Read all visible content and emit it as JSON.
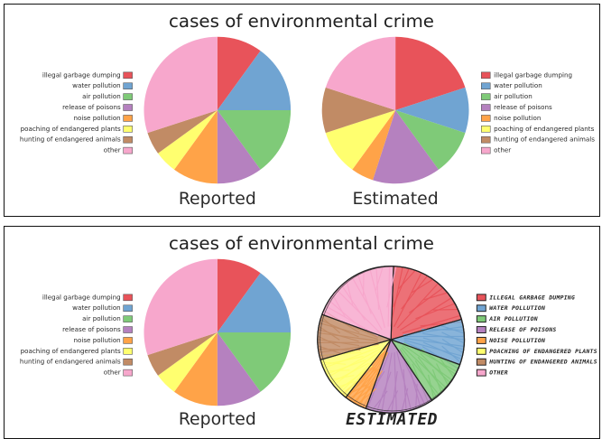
{
  "panels": [
    {
      "title": "cases of environmental crime",
      "legend": [
        "illegal garbage dumping",
        "water pollution",
        "air pollution",
        "release of poisons",
        "noise pollution",
        "poaching of endangered plants",
        "hunting of endangered animals",
        "other"
      ],
      "reported_caption": "Reported",
      "estimated_caption": "Estimated",
      "estimated_caption_style": "plain"
    },
    {
      "title": "cases of environmental crime",
      "legend": [
        "illegal garbage dumping",
        "water pollution",
        "air pollution",
        "release of poisons",
        "noise pollution",
        "poaching of endangered plants",
        "hunting of endangered animals",
        "other"
      ],
      "reported_caption": "Reported",
      "estimated_caption": "Estimated",
      "estimated_caption_style": "sketch"
    }
  ],
  "sketch_legend": [
    "ILLEGAL GARBAGE DUMPING",
    "WATER POLLUTION",
    "AIR POLLUTION",
    "RELEASE OF POISONS",
    "NOISE POLLUTION",
    "POACHING OF ENDANGERED PLANTS",
    "HUNTING OF ENDANGERED ANIMALS",
    "OTHER"
  ],
  "sketch_estimated_caption": "ESTIMATED",
  "colors": [
    "#e8535a",
    "#70a4d2",
    "#7fca78",
    "#b581bf",
    "#ffa348",
    "#ffff6f",
    "#c18b65",
    "#f7a7cc"
  ],
  "chart_data": [
    {
      "type": "pie",
      "title": "cases of environmental crime",
      "subtitle": "Reported",
      "categories": [
        "illegal garbage dumping",
        "water pollution",
        "air pollution",
        "release of poisons",
        "noise pollution",
        "poaching of endangered plants",
        "hunting of endangered animals",
        "other"
      ],
      "values": [
        10,
        15,
        15,
        10,
        10,
        5,
        5,
        30
      ]
    },
    {
      "type": "pie",
      "title": "cases of environmental crime",
      "subtitle": "Estimated",
      "categories": [
        "illegal garbage dumping",
        "water pollution",
        "air pollution",
        "release of poisons",
        "noise pollution",
        "poaching of endangered plants",
        "hunting of endangered animals",
        "other"
      ],
      "values": [
        20,
        10,
        10,
        15,
        5,
        10,
        10,
        20
      ]
    }
  ]
}
